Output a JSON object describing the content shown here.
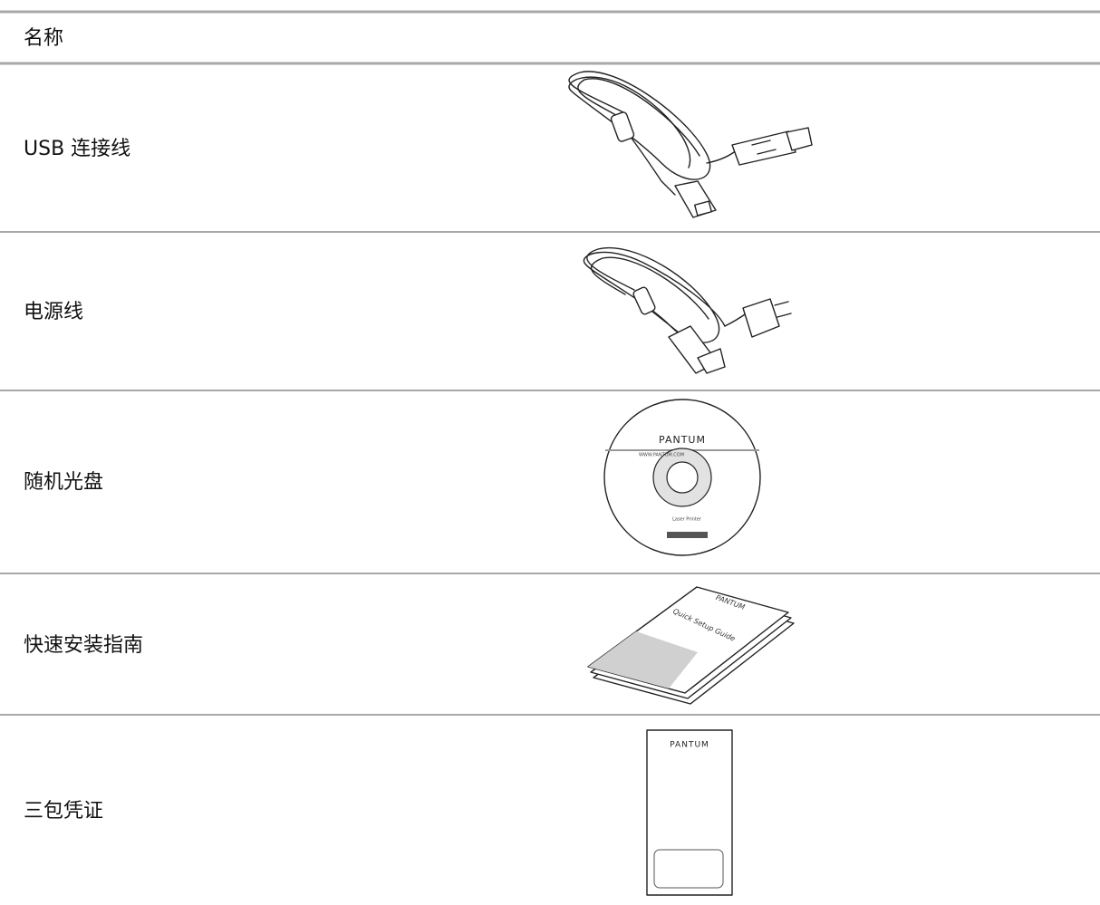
{
  "table": {
    "header": "名称",
    "rows": [
      {
        "name": "USB 连接线"
      },
      {
        "name": "电源线"
      },
      {
        "name": "随机光盘",
        "labels": [
          "PANTUM",
          "WWW.PANTUM.COM",
          "Laser Printer"
        ]
      },
      {
        "name": "快速安装指南",
        "labels": [
          "PANTUM",
          "Quick Setup Guide"
        ]
      },
      {
        "name": "三包凭证",
        "labels": [
          "PANTUM"
        ]
      }
    ]
  }
}
